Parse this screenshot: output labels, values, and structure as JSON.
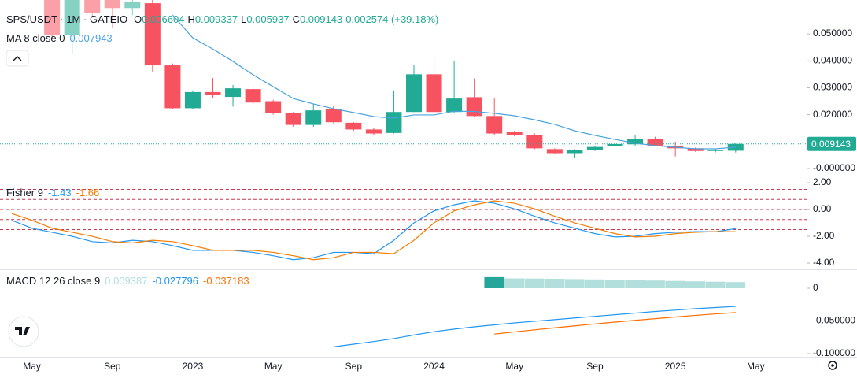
{
  "chart_data": [
    {
      "type": "candlestick",
      "title": "SPS/USDT · 1M · GATEIO",
      "ohlc_legend": [
        {
          "key": "O",
          "value": "0.006604"
        },
        {
          "key": "H",
          "value": "0.009337"
        },
        {
          "key": "L",
          "value": "0.005937"
        },
        {
          "key": "C",
          "value": "0.009143"
        }
      ],
      "change": "0.002574 (+39.18%)",
      "categories": [
        null,
        "May",
        null,
        null,
        null,
        "Sep",
        null,
        null,
        null,
        "2023",
        null,
        null,
        null,
        "May",
        null,
        null,
        null,
        "Sep",
        null,
        null,
        null,
        "2024",
        null,
        null,
        null,
        "May",
        null,
        null,
        null,
        "Sep",
        null,
        null,
        null,
        "2025",
        null,
        null,
        null,
        "May"
      ],
      "open": [
        null,
        null,
        0.075,
        0.0497,
        0.07,
        0.066,
        0.0596,
        0.0614,
        0.0383,
        0.0224,
        0.0284,
        0.0266,
        0.0295,
        0.025,
        0.0205,
        0.0162,
        0.0222,
        0.017,
        0.0145,
        0.0132,
        0.021,
        0.035,
        0.021,
        0.0265,
        0.0195,
        0.0135,
        0.0125,
        0.0072,
        0.0057,
        0.007,
        0.0082,
        0.009,
        0.011,
        0.0082,
        0.0075,
        0.0066,
        0.006604,
        null
      ],
      "high": [
        null,
        null,
        0.08,
        0.075,
        0.075,
        0.07,
        0.07,
        0.066,
        0.039,
        0.029,
        0.0336,
        0.031,
        0.0305,
        0.0255,
        0.021,
        0.024,
        0.0232,
        0.0172,
        0.015,
        0.029,
        0.0385,
        0.0415,
        0.04,
        0.0335,
        0.026,
        0.014,
        0.013,
        0.0075,
        0.0072,
        0.0085,
        0.0095,
        0.0125,
        0.0118,
        0.01,
        0.0078,
        0.0072,
        0.009337,
        null
      ],
      "low": [
        null,
        null,
        0.048,
        0.0427,
        0.056,
        0.052,
        0.057,
        0.036,
        0.0222,
        0.0222,
        0.026,
        0.023,
        0.024,
        0.02,
        0.0155,
        0.0155,
        0.0168,
        0.014,
        0.0125,
        0.013,
        0.021,
        0.0205,
        0.0205,
        0.019,
        0.0125,
        0.012,
        0.0072,
        0.0055,
        0.004,
        0.0065,
        0.0078,
        0.0085,
        0.0082,
        0.0045,
        0.0062,
        0.006,
        0.005937,
        null
      ],
      "close": [
        null,
        null,
        0.0497,
        0.07,
        0.0577,
        0.0596,
        0.062,
        0.0383,
        0.0224,
        0.0284,
        0.0272,
        0.0298,
        0.0245,
        0.0205,
        0.0162,
        0.0216,
        0.0172,
        0.0145,
        0.013,
        0.021,
        0.035,
        0.021,
        0.026,
        0.0195,
        0.013,
        0.0125,
        0.0075,
        0.0057,
        0.0068,
        0.008,
        0.0091,
        0.011,
        0.0085,
        0.0075,
        0.0065,
        0.0068,
        0.009143,
        null
      ],
      "up_color": "#22ab94",
      "down_color": "#f7525f",
      "overlay": {
        "name": "MA 8 close 0",
        "value_label": "0.007943",
        "color": "#4aa3df",
        "values": [
          null,
          null,
          null,
          null,
          null,
          null,
          null,
          null,
          0.057,
          0.0485,
          0.0444,
          0.0398,
          0.0348,
          0.0304,
          0.026,
          0.024,
          0.0222,
          0.0208,
          0.0193,
          0.0187,
          0.0199,
          0.0199,
          0.0213,
          0.0212,
          0.0205,
          0.0196,
          0.0181,
          0.0164,
          0.014,
          0.0123,
          0.0108,
          0.0094,
          0.0085,
          0.0079,
          0.0073,
          0.0073,
          0.007943,
          null
        ]
      },
      "price_line": {
        "value": 0.009143,
        "label": "0.009143",
        "color": "#22ab94"
      },
      "ylim": [
        -0.0041,
        0.0626
      ],
      "yticks": [
        {
          "value": 0,
          "label": "-0.000000"
        },
        {
          "value": 0.02,
          "label": "0.020000"
        },
        {
          "value": 0.03,
          "label": "0.030000"
        },
        {
          "value": 0.04,
          "label": "0.040000"
        },
        {
          "value": 0.05,
          "label": "0.050000"
        }
      ]
    },
    {
      "type": "line",
      "name": "Fisher 9",
      "ylim": [
        -4.47,
        2.18
      ],
      "yticks": [
        {
          "value": 2,
          "label": "2.00"
        },
        {
          "value": 0,
          "label": "0.00"
        },
        {
          "value": -2,
          "label": "-2.00"
        },
        {
          "value": -4,
          "label": "-4.00"
        }
      ],
      "levels": [
        1.5,
        0.75,
        0,
        -0.75,
        -1.5
      ],
      "level_color": "#c9374d",
      "series": [
        {
          "value_label": "-1.43",
          "color": "#2196f3",
          "values": [
            -0.8,
            -1.4,
            -1.7,
            -2.0,
            -2.4,
            -2.5,
            -2.3,
            -2.4,
            -2.7,
            -3.05,
            -3.05,
            -3.05,
            -3.2,
            -3.45,
            -3.75,
            -3.6,
            -3.2,
            -3.2,
            -3.3,
            -2.3,
            -1.0,
            -0.1,
            0.35,
            0.65,
            0.47,
            0.05,
            -0.5,
            -1.0,
            -1.4,
            -1.8,
            -2.05,
            -2.0,
            -1.8,
            -1.7,
            -1.65,
            -1.66,
            -1.43,
            null
          ]
        },
        {
          "value_label": "-1.66",
          "color": "#f57c00",
          "values": [
            -0.3,
            -0.8,
            -1.4,
            -1.7,
            -2.0,
            -2.4,
            -2.5,
            -2.3,
            -2.4,
            -2.7,
            -3.05,
            -3.05,
            -3.05,
            -3.2,
            -3.45,
            -3.75,
            -3.6,
            -3.2,
            -3.2,
            -3.3,
            -2.3,
            -1.0,
            -0.1,
            0.35,
            0.65,
            0.47,
            0.05,
            -0.5,
            -1.0,
            -1.4,
            -1.8,
            -2.05,
            -2.0,
            -1.8,
            -1.7,
            -1.65,
            -1.66,
            null
          ]
        }
      ]
    },
    {
      "type": "macd",
      "name": "MACD 12 26 close 9",
      "ylim": [
        -0.1048,
        0.0277
      ],
      "yticks": [
        0,
        {
          "value": -0.05,
          "label": "-0.050000"
        },
        {
          "value": -0.1,
          "label": "-0.100000"
        }
      ],
      "histogram": {
        "value_label": "0.009387",
        "colors": [
          "#26a69a",
          "#b2dfdb"
        ],
        "values": [
          null,
          null,
          null,
          null,
          null,
          null,
          null,
          null,
          null,
          null,
          null,
          null,
          null,
          null,
          null,
          null,
          null,
          null,
          null,
          null,
          null,
          null,
          null,
          null,
          0.017,
          0.015,
          0.0148,
          0.0145,
          0.014,
          0.0135,
          0.013,
          0.0125,
          0.0118,
          0.0112,
          0.0106,
          0.01,
          0.009387,
          null
        ]
      },
      "series": [
        {
          "value_label": "-0.027796",
          "color": "#2196f3",
          "values": [
            null,
            null,
            null,
            null,
            null,
            null,
            null,
            null,
            null,
            null,
            null,
            null,
            null,
            null,
            null,
            null,
            -0.0896,
            -0.0855,
            -0.0815,
            -0.077,
            -0.0715,
            -0.0665,
            -0.0625,
            -0.059,
            -0.056,
            -0.053,
            -0.0505,
            -0.048,
            -0.0455,
            -0.043,
            -0.0405,
            -0.038,
            -0.0355,
            -0.0335,
            -0.0312,
            -0.0295,
            -0.027796,
            null
          ]
        },
        {
          "value_label": "-0.037183",
          "color": "#ff6d00",
          "values": [
            null,
            null,
            null,
            null,
            null,
            null,
            null,
            null,
            null,
            null,
            null,
            null,
            null,
            null,
            null,
            null,
            null,
            null,
            null,
            null,
            null,
            null,
            null,
            null,
            -0.0701,
            -0.0668,
            -0.0636,
            -0.0605,
            -0.0575,
            -0.0546,
            -0.0518,
            -0.0491,
            -0.0465,
            -0.044,
            -0.0415,
            -0.0392,
            -0.037183,
            null
          ]
        }
      ]
    }
  ]
}
